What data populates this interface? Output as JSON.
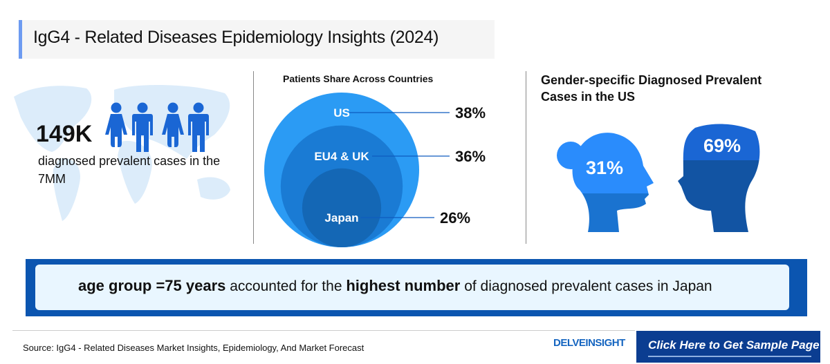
{
  "title": "IgG4 - Related Diseases Epidemiology Insights (2024)",
  "summary": {
    "value": "149K",
    "description": "diagnosed prevalent cases in the 7MM"
  },
  "chart_data": {
    "type": "nested-bubble",
    "title": "Patients Share Across Countries",
    "categories": [
      "US",
      "EU4 & UK",
      "Japan"
    ],
    "values": [
      38,
      36,
      26
    ],
    "value_labels": [
      "38%",
      "36%",
      "26%"
    ],
    "colors": [
      "#2b9bf4",
      "#1a7bd4",
      "#1467b5"
    ]
  },
  "gender": {
    "title": "Gender-specific Diagnosed Prevalent Cases in the US",
    "female_label": "31%",
    "male_label": "69%",
    "female_share": 31,
    "male_share": 69
  },
  "banner": {
    "bold1": "age group =75 years",
    "text1": " accounted for the ",
    "bold2": "highest number",
    "text2": " of diagnosed prevalent cases in Japan"
  },
  "footer": {
    "source": "Source: IgG4 - Related Diseases Market Insights, Epidemiology, And Market Forecast",
    "logo": "DELVEINSIGHT",
    "cta": "Click Here to Get Sample Page"
  }
}
